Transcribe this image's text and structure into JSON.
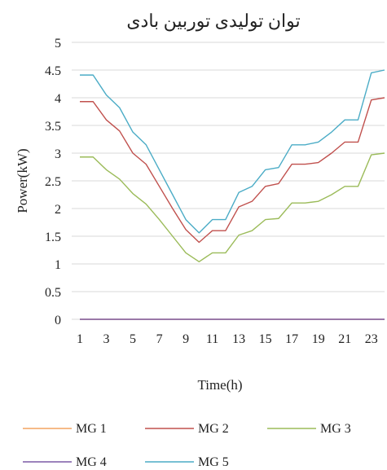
{
  "chart_data": {
    "type": "line",
    "title": "توان تولیدی توربین بادی",
    "xlabel": "Time(h)",
    "ylabel": "Power(kW)",
    "xlim": [
      1,
      24
    ],
    "ylim": [
      0,
      5
    ],
    "x": [
      1,
      2,
      3,
      4,
      5,
      6,
      7,
      8,
      9,
      10,
      11,
      12,
      13,
      14,
      15,
      16,
      17,
      18,
      19,
      20,
      21,
      22,
      23,
      24
    ],
    "x_ticks": [
      1,
      3,
      5,
      7,
      9,
      11,
      13,
      15,
      17,
      19,
      21,
      23
    ],
    "y_ticks": [
      0,
      0.5,
      1,
      1.5,
      2,
      2.5,
      3,
      3.5,
      4,
      4.5,
      5
    ],
    "y_tick_labels": [
      "0",
      "0.5",
      "1",
      "1.5",
      "2",
      "2.5",
      "3",
      "3.5",
      "4",
      "4.5",
      "5"
    ],
    "grid": "horizontal",
    "legend_position": "bottom",
    "series": [
      {
        "name": "MG 1",
        "color": "#f4a460",
        "values": [
          0,
          0,
          0,
          0,
          0,
          0,
          0,
          0,
          0,
          0,
          0,
          0,
          0,
          0,
          0,
          0,
          0,
          0,
          0,
          0,
          0,
          0,
          0,
          0
        ]
      },
      {
        "name": "MG 2",
        "color": "#c0504d",
        "values": [
          3.93,
          3.93,
          3.6,
          3.4,
          3.0,
          2.8,
          2.4,
          2.0,
          1.62,
          1.39,
          1.6,
          1.6,
          2.03,
          2.13,
          2.4,
          2.45,
          2.8,
          2.8,
          2.83,
          3.0,
          3.2,
          3.2,
          3.96,
          4.0
        ]
      },
      {
        "name": "MG 3",
        "color": "#9bbb59",
        "values": [
          2.93,
          2.93,
          2.7,
          2.53,
          2.27,
          2.08,
          1.8,
          1.5,
          1.2,
          1.04,
          1.2,
          1.2,
          1.52,
          1.6,
          1.8,
          1.82,
          2.1,
          2.1,
          2.13,
          2.25,
          2.4,
          2.4,
          2.97,
          3.0
        ]
      },
      {
        "name": "MG 4",
        "color": "#7b5aa6",
        "values": [
          0,
          0,
          0,
          0,
          0,
          0,
          0,
          0,
          0,
          0,
          0,
          0,
          0,
          0,
          0,
          0,
          0,
          0,
          0,
          0,
          0,
          0,
          0,
          0
        ]
      },
      {
        "name": "MG 5",
        "color": "#4bacc6",
        "values": [
          4.41,
          4.41,
          4.05,
          3.82,
          3.38,
          3.15,
          2.7,
          2.25,
          1.8,
          1.56,
          1.8,
          1.8,
          2.29,
          2.4,
          2.7,
          2.74,
          3.15,
          3.15,
          3.2,
          3.38,
          3.6,
          3.6,
          4.45,
          4.5
        ]
      }
    ]
  }
}
